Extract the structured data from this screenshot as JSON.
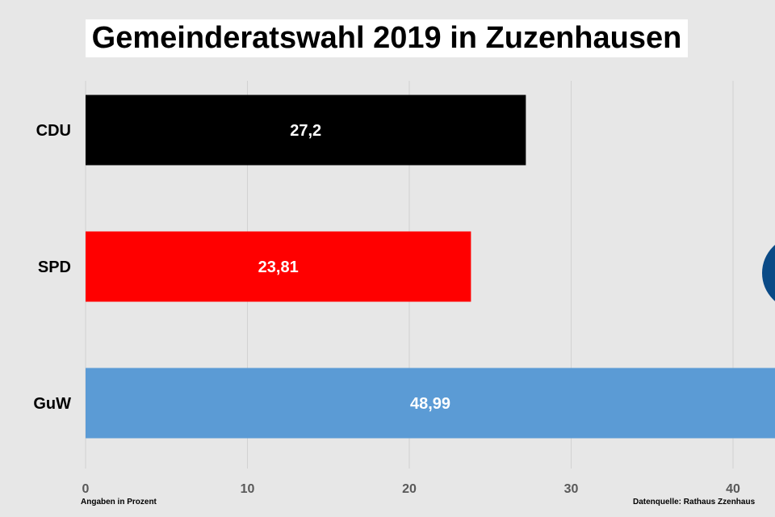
{
  "chart_data": {
    "type": "bar",
    "orientation": "horizontal",
    "title": "Gemeinderatswahl 2019 in Zuzenhausen",
    "categories": [
      "CDU",
      "SPD",
      "GuW"
    ],
    "values": [
      27.2,
      23.81,
      48.99
    ],
    "value_labels": [
      "27,2",
      "23,81",
      "48,99"
    ],
    "colors": [
      "#000000",
      "#ff0000",
      "#5b9bd5"
    ],
    "xlim": [
      0,
      45
    ],
    "xticks": [
      0,
      10,
      20,
      30,
      40
    ],
    "grid": true,
    "legend": "none"
  },
  "footer": {
    "left_note": "Angaben in Prozent",
    "right_note": "Datenquelle: Rathaus  Zzenhaus"
  },
  "decoration": {
    "logo_color": "#0a4a86"
  }
}
